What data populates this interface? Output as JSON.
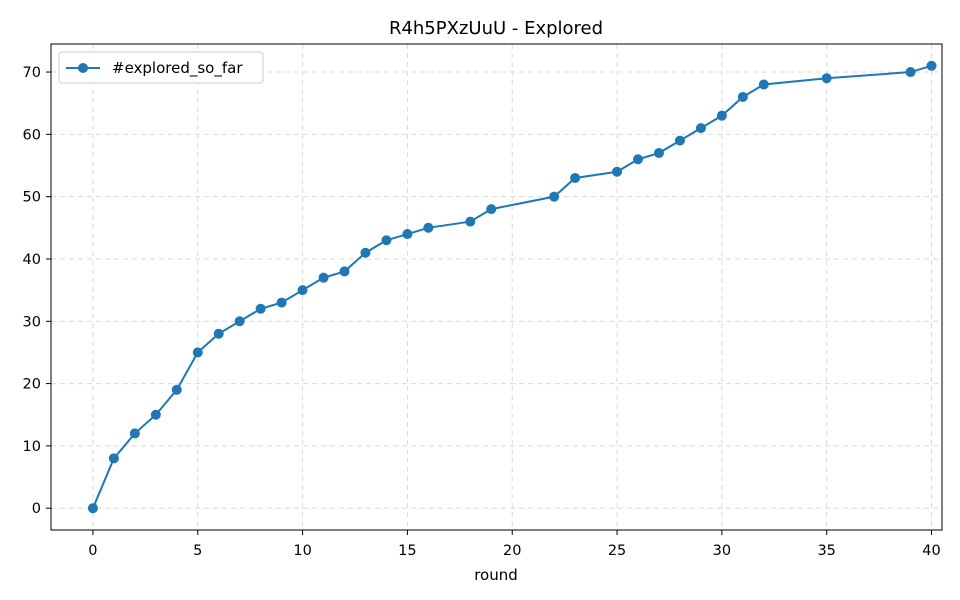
{
  "chart_data": {
    "type": "line",
    "title": "R4h5PXzUuU - Explored",
    "xlabel": "round",
    "ylabel": "",
    "xlim": [
      -2,
      40.5
    ],
    "ylim": [
      -3.5,
      74.5
    ],
    "xticks": [
      0,
      5,
      10,
      15,
      20,
      25,
      30,
      35,
      40
    ],
    "yticks": [
      0,
      10,
      20,
      30,
      40,
      50,
      60,
      70
    ],
    "grid": true,
    "legend_position": "top-left",
    "series": [
      {
        "name": "#explored_so_far",
        "color": "#1f77b4",
        "marker": "circle",
        "x": [
          0,
          1,
          2,
          3,
          4,
          5,
          6,
          7,
          8,
          9,
          10,
          11,
          12,
          13,
          14,
          15,
          16,
          18,
          19,
          22,
          23,
          25,
          26,
          27,
          28,
          29,
          30,
          31,
          32,
          35,
          39,
          40
        ],
        "y": [
          0,
          8,
          12,
          15,
          19,
          25,
          28,
          30,
          32,
          33,
          35,
          37,
          38,
          41,
          43,
          44,
          45,
          46,
          48,
          50,
          53,
          54,
          56,
          57,
          59,
          61,
          63,
          66,
          68,
          69,
          70,
          71
        ]
      }
    ]
  }
}
